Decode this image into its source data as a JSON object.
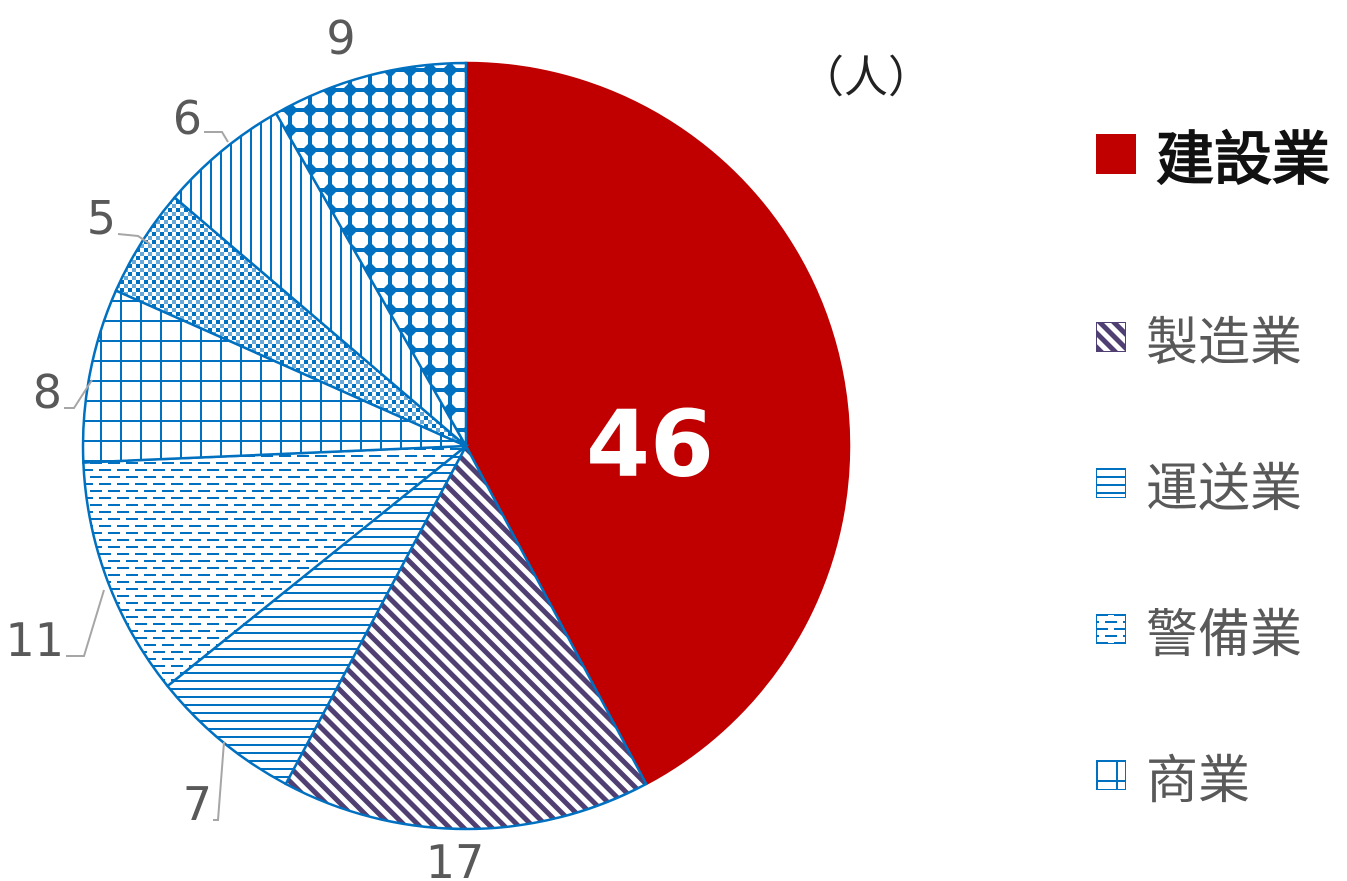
{
  "chart_data": {
    "type": "pie",
    "unit_label": "（人）",
    "categories": [
      "建設業",
      "製造業",
      "運送業",
      "警備業",
      "商業",
      "",
      "",
      ""
    ],
    "values": [
      46,
      17,
      7,
      11,
      8,
      5,
      6,
      9
    ],
    "highlight_index": 0,
    "colors": {
      "highlight": "#C00000",
      "pattern_blue": "#0070C0",
      "pattern_purple": "#4F3F72",
      "leader_line": "#A6A6A6",
      "label_text": "#595959"
    },
    "legend": {
      "placement": "right",
      "items": [
        {
          "label": "建設業"
        },
        {
          "label": "製造業"
        },
        {
          "label": "運送業"
        },
        {
          "label": "警備業"
        },
        {
          "label": "商業"
        }
      ]
    }
  }
}
